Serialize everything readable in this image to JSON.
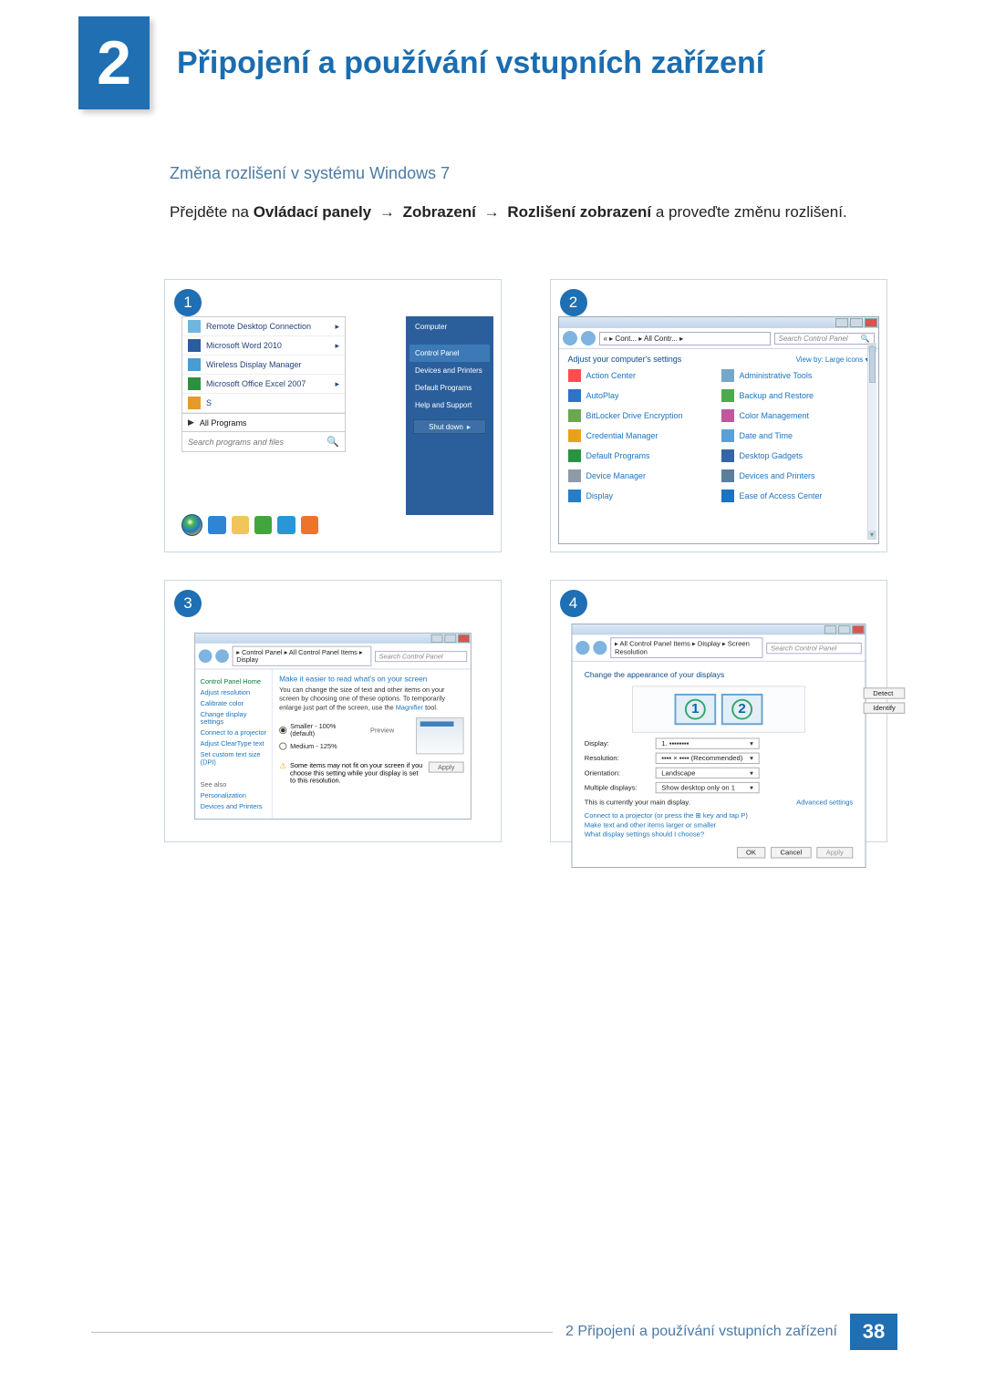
{
  "chapter": {
    "number": "2",
    "title": "Připojení a používání vstupních zařízení"
  },
  "subheading": "Změna rozlišení v systému Windows 7",
  "instruction": {
    "pre": "Přejděte na ",
    "b1": "Ovládací panely",
    "arrow": "→",
    "b2": "Zobrazení",
    "b3": "Rozlišení zobrazení",
    "post": " a proveďte změnu rozlišení."
  },
  "panel1": {
    "step": "1",
    "menu_rows": [
      "Remote Desktop Connection",
      "Microsoft Word 2010",
      "Wireless Display Manager",
      "Microsoft Office Excel 2007",
      "S"
    ],
    "all_programs": "All Programs",
    "search_placeholder": "Search programs and files",
    "right_items": [
      "Computer",
      "Control Panel",
      "Devices and Printers",
      "Default Programs",
      "Help and Support"
    ],
    "shutdown": "Shut down"
  },
  "panel2": {
    "step": "2",
    "breadcrumb": "« ▸ Cont... ▸ All Contr... ▸",
    "search_placeholder": "Search Control Panel",
    "adjust": "Adjust your computer's settings",
    "viewby": "View by:   Large icons ▾",
    "items_left": [
      {
        "label": "Action Center",
        "color": "#ff4d4f"
      },
      {
        "label": "AutoPlay",
        "color": "#3072c4"
      },
      {
        "label": "BitLocker Drive Encryption",
        "color": "#6aa84f"
      },
      {
        "label": "Credential Manager",
        "color": "#e7a11b"
      },
      {
        "label": "Default Programs",
        "color": "#2e9141"
      },
      {
        "label": "Device Manager",
        "color": "#8e9aa7"
      },
      {
        "label": "Display",
        "color": "#2b7dc1"
      }
    ],
    "items_right": [
      {
        "label": "Administrative Tools",
        "color": "#75a7c9"
      },
      {
        "label": "Backup and Restore",
        "color": "#4daa4d"
      },
      {
        "label": "Color Management",
        "color": "#bc5a9d"
      },
      {
        "label": "Date and Time",
        "color": "#5aa0d6"
      },
      {
        "label": "Desktop Gadgets",
        "color": "#3665a6"
      },
      {
        "label": "Devices and Printers",
        "color": "#5d7d9c"
      },
      {
        "label": "Ease of Access Center",
        "color": "#1e73c0"
      }
    ]
  },
  "panel3": {
    "step": "3",
    "breadcrumb": "▸ Control Panel ▸ All Control Panel Items ▸ Display",
    "search_placeholder": "Search Control Panel",
    "side": {
      "home": "Control Panel Home",
      "links": [
        "Adjust resolution",
        "Calibrate color",
        "Change display settings",
        "Connect to a projector",
        "Adjust ClearType text",
        "Set custom text size (DPI)"
      ],
      "seealso": "See also",
      "seealso_links": [
        "Personalization",
        "Devices and Printers"
      ]
    },
    "heading": "Make it easier to read what's on your screen",
    "desc_a": "You can change the size of text and other items on your screen by choosing one of these options. To temporarily enlarge just part of the screen, use the ",
    "desc_link": "Magnifier",
    "desc_b": " tool.",
    "opt1": "Smaller - 100% (default)",
    "opt1_note": "Preview",
    "opt2": "Medium - 125%",
    "warn": "Some items may not fit on your screen if you choose this setting while your display is set to this resolution.",
    "apply": "Apply"
  },
  "panel4": {
    "step": "4",
    "breadcrumb": "▸ All Control Panel Items ▸ Display ▸ Screen Resolution",
    "search_placeholder": "Search Control Panel",
    "heading": "Change the appearance of your displays",
    "btn_detect": "Detect",
    "btn_identify": "Identify",
    "fields": {
      "display": {
        "label": "Display:",
        "value": "1. ▪▪▪▪▪▪▪▪"
      },
      "resolution": {
        "label": "Resolution:",
        "value": "▪▪▪▪ × ▪▪▪▪ (Recommended)"
      },
      "orientation": {
        "label": "Orientation:",
        "value": "Landscape"
      },
      "multi": {
        "label": "Multiple displays:",
        "value": "Show desktop only on 1"
      }
    },
    "note": "This is currently your main display.",
    "advanced": "Advanced settings",
    "link1": "Connect to a projector (or press the ⊞ key and tap P)",
    "link2": "Make text and other items larger or smaller",
    "link3": "What display settings should I choose?",
    "ok": "OK",
    "cancel": "Cancel",
    "apply": "Apply"
  },
  "footer": {
    "text": "2 Připojení a používání vstupních zařízení",
    "page": "38"
  },
  "colors": {
    "brand_blue": "#1f6fb2",
    "link_blue": "#1a74c1"
  }
}
